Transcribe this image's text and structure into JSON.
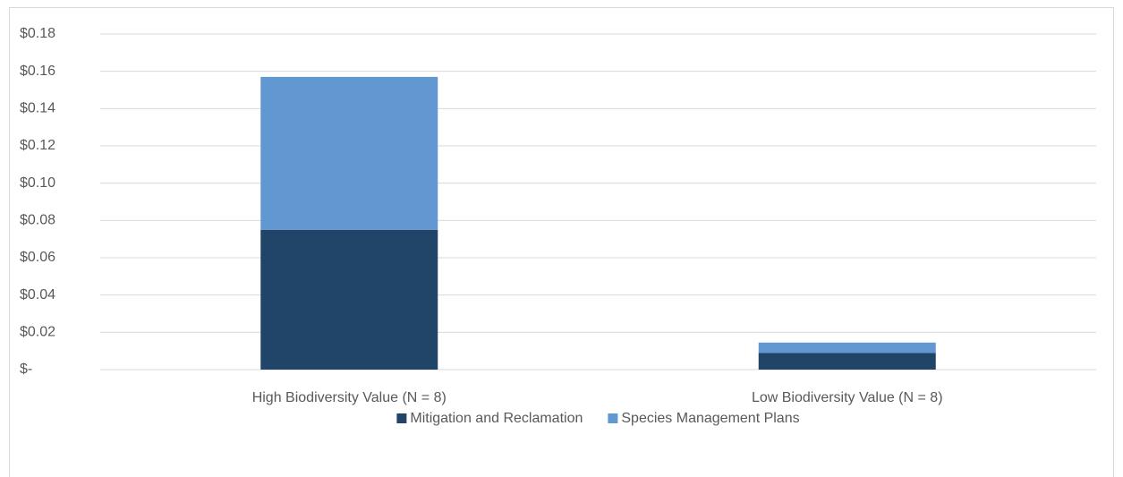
{
  "chart_data": {
    "type": "stacked_bar",
    "categories": [
      "High Biodiversity Value (N = 8)",
      "Low Biodiversity Value (N = 8)"
    ],
    "series": [
      {
        "name": "Mitigation and Reclamation",
        "color": "#214469",
        "values": [
          0.075,
          0.009
        ]
      },
      {
        "name": "Species Management Plans",
        "color": "#6198d1",
        "values": [
          0.082,
          0.0055
        ]
      }
    ],
    "ylim": [
      0,
      0.18
    ],
    "yticks": [
      {
        "value": 0,
        "label": "$-"
      },
      {
        "value": 0.02,
        "label": "$0.02"
      },
      {
        "value": 0.04,
        "label": "$0.04"
      },
      {
        "value": 0.06,
        "label": "$0.06"
      },
      {
        "value": 0.08,
        "label": "$0.08"
      },
      {
        "value": 0.1,
        "label": "$0.10"
      },
      {
        "value": 0.12,
        "label": "$0.12"
      },
      {
        "value": 0.14,
        "label": "$0.14"
      },
      {
        "value": 0.16,
        "label": "$0.16"
      },
      {
        "value": 0.18,
        "label": "$0.18"
      }
    ],
    "grid": true,
    "legend": "bottom"
  }
}
